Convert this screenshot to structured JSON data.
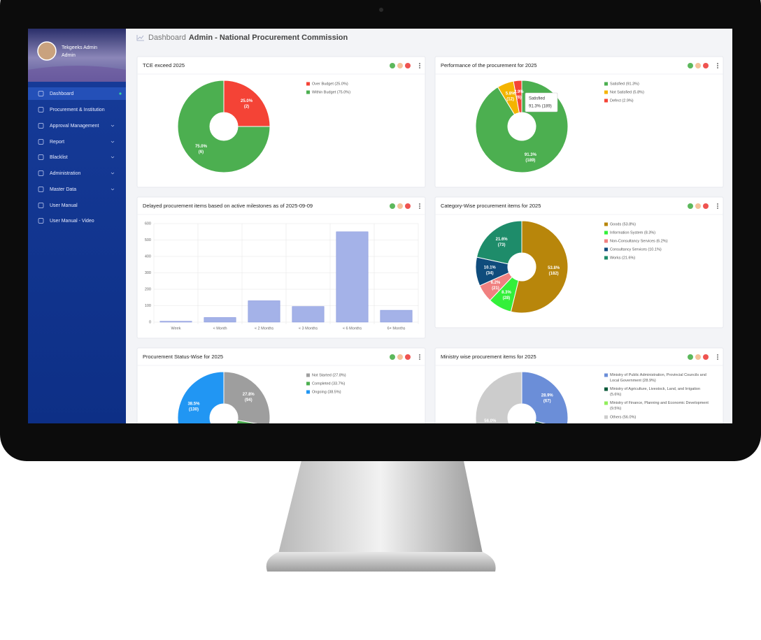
{
  "header": {
    "page": "Dashboard",
    "title": "Admin - National Procurement Commission"
  },
  "user": {
    "name": "Tekgeeks Admin",
    "role": "Admin"
  },
  "menu": [
    "Dashboard",
    "Procurement & Institution",
    "Approval Management",
    "Report",
    "Blacklist",
    "Administration",
    "Master Data",
    "User Manual",
    "User Manual - Video"
  ],
  "chart_data": [
    {
      "type": "doughnut",
      "title": "TCE exceed 2025",
      "categories": [
        "Over Budget (25.0%)",
        "Within Budget (75.0%)"
      ],
      "values": [
        25.0,
        75.0
      ],
      "value_labels": [
        "25.0%",
        "75.0%"
      ],
      "count_labels": [
        "(2)",
        "(6)"
      ],
      "colors": [
        "#f44336",
        "#4caf50"
      ]
    },
    {
      "type": "doughnut",
      "title": "Performance of the procurement for 2025",
      "categories": [
        "Satisfied (91.3%)",
        "Not Satisfied (5.8%)",
        "Defect (2.9%)"
      ],
      "values": [
        91.3,
        5.8,
        2.9
      ],
      "value_labels": [
        "91.3%",
        "5.8%",
        "2.9%"
      ],
      "count_labels": [
        "(189)",
        "(12)",
        "(6)"
      ],
      "colors": [
        "#4caf50",
        "#f4b400",
        "#f44336"
      ],
      "tooltip": {
        "title": "Satisfied",
        "text": "91.3% (189)"
      }
    },
    {
      "type": "bar",
      "title": "Delayed procurement items based on active milestones as of 2025-09-09",
      "categories": [
        "Week",
        "< Month",
        "< 2 Months",
        "< 3 Months",
        "< 6 Months",
        "6+ Months"
      ],
      "values": [
        5,
        28,
        130,
        95,
        550,
        72
      ],
      "color": "#a4b2e8",
      "ylim": [
        0,
        600
      ],
      "yticks": [
        0,
        100,
        200,
        300,
        400,
        500,
        600
      ],
      "grid": true
    },
    {
      "type": "doughnut",
      "title": "Category-Wise procurement items for 2025",
      "categories": [
        "Goods (53.8%)",
        "Information System (8.3%)",
        "Non-Consultancy Services (6.2%)",
        "Consultancy Services (10.1%)",
        "Works (21.6%)"
      ],
      "values": [
        53.8,
        8.3,
        6.2,
        10.1,
        21.6
      ],
      "value_labels": [
        "53.8%",
        "8.3%",
        "6.2%",
        "10.1%",
        "21.6%"
      ],
      "count_labels": [
        "(182)",
        "(28)",
        "(21)",
        "(34)",
        "(73)"
      ],
      "colors": [
        "#b8860b",
        "#33f03a",
        "#f08080",
        "#0f4c7c",
        "#1e8c6a"
      ]
    },
    {
      "type": "doughnut",
      "title": "Procurement Status-Wise for 2025",
      "categories": [
        "Not Started (27.8%)",
        "Completed (33.7%)",
        "Ongoing (38.5%)"
      ],
      "values": [
        27.8,
        33.7,
        38.5
      ],
      "value_labels": [
        "27.8%",
        null,
        "38.5%"
      ],
      "count_labels": [
        "(94)",
        null,
        "(130)"
      ],
      "colors": [
        "#9e9e9e",
        "#4caf50",
        "#2196f3"
      ]
    },
    {
      "type": "doughnut",
      "title": "Ministry wise procurement items for 2025",
      "categories": [
        "Ministry of Public Administration, Provincial Councils and Local Government (28.9%)",
        "Ministry of Agriculture, Livestock, Land, and Irrigation (5.6%)",
        "Ministry of Finance, Planning and Economic Development (9.5%)",
        "Others (56.0%)"
      ],
      "values": [
        28.9,
        5.6,
        9.5,
        56.0
      ],
      "value_labels": [
        "28.9%",
        null,
        null,
        "56.0%"
      ],
      "count_labels": [
        "(67)",
        null,
        null,
        null
      ],
      "colors": [
        "#6b8ed8",
        "#0b5a3a",
        "#92ee5c",
        "#cccccc"
      ]
    }
  ]
}
